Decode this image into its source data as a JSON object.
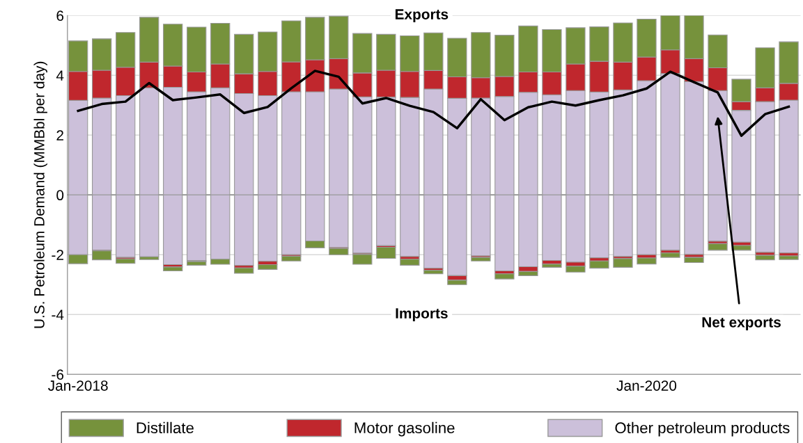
{
  "chart_data": {
    "type": "bar",
    "stacked": true,
    "ylabel": "U.S. Petroleum Demand (MMBbl per day)",
    "categories": [
      "Jan-2018",
      null,
      null,
      null,
      null,
      null,
      null,
      null,
      null,
      null,
      null,
      null,
      null,
      null,
      null,
      null,
      null,
      null,
      null,
      null,
      null,
      null,
      null,
      null,
      "Jan-2020",
      null,
      null,
      null,
      null,
      null,
      null
    ],
    "ylim": [
      -6,
      6
    ],
    "yticks": [
      -6,
      -4,
      -2,
      0,
      2,
      4,
      6
    ],
    "grid": "y",
    "legend": "bottom",
    "annotations": [
      "Exports",
      "Imports"
    ],
    "ref_lines": [
      {
        "axis": "y",
        "value": 0,
        "color": "#808080"
      }
    ],
    "series": [
      {
        "name": "Other petroleum products",
        "color": "#ccc0da",
        "values": [
          3.16,
          3.24,
          3.32,
          3.58,
          3.6,
          3.45,
          3.58,
          3.39,
          3.32,
          3.45,
          3.45,
          3.54,
          3.28,
          3.27,
          3.26,
          3.54,
          3.23,
          3.24,
          3.29,
          3.43,
          3.35,
          3.49,
          3.44,
          3.51,
          3.82,
          4.06,
          3.79,
          3.49,
          2.83,
          3.12,
          3.17
        ]
      },
      {
        "name": "Motor gasoline",
        "color": "#c0272d",
        "values": [
          0.97,
          0.93,
          0.95,
          0.86,
          0.71,
          0.66,
          0.8,
          0.66,
          0.81,
          1.0,
          1.07,
          1.02,
          0.8,
          0.9,
          0.87,
          0.62,
          0.72,
          0.68,
          0.67,
          0.68,
          0.76,
          0.89,
          1.03,
          0.93,
          0.79,
          0.79,
          0.77,
          0.76,
          0.29,
          0.46,
          0.56
        ]
      },
      {
        "name": "Distillate",
        "color": "#76923c",
        "values": [
          1.02,
          1.05,
          1.16,
          1.5,
          1.4,
          1.5,
          1.36,
          1.32,
          1.32,
          1.37,
          1.42,
          1.42,
          1.32,
          1.2,
          1.19,
          1.26,
          1.29,
          1.51,
          1.38,
          1.54,
          1.42,
          1.21,
          1.15,
          1.31,
          1.27,
          1.15,
          1.44,
          1.1,
          0.75,
          1.34,
          1.39
        ]
      },
      {
        "color": "#ccc0da",
        "values": [
          -2.0,
          -1.85,
          -2.09,
          -2.07,
          -2.33,
          -2.2,
          -2.15,
          -2.36,
          -2.22,
          -2.0,
          -1.54,
          -1.76,
          -1.95,
          -1.7,
          -2.06,
          -2.45,
          -2.7,
          -2.04,
          -2.54,
          -2.4,
          -2.19,
          -2.25,
          -2.1,
          -2.06,
          -2.0,
          -1.85,
          -1.99,
          -1.55,
          -1.58,
          -1.92,
          -1.94
        ]
      },
      {
        "color": "#c0272d",
        "values": [
          null,
          -0.02,
          -0.05,
          null,
          -0.08,
          -0.03,
          null,
          -0.08,
          -0.11,
          -0.05,
          null,
          -0.03,
          -0.04,
          -0.05,
          -0.09,
          -0.07,
          -0.15,
          -0.05,
          -0.1,
          -0.16,
          -0.12,
          -0.13,
          -0.11,
          -0.07,
          -0.11,
          -0.09,
          -0.1,
          -0.08,
          -0.11,
          -0.1,
          -0.1
        ]
      },
      {
        "color": "#76923c",
        "values": [
          -0.3,
          -0.3,
          -0.15,
          -0.09,
          -0.13,
          -0.12,
          -0.17,
          -0.18,
          -0.16,
          -0.16,
          -0.23,
          -0.21,
          -0.33,
          -0.37,
          -0.2,
          -0.12,
          -0.15,
          -0.12,
          -0.17,
          -0.14,
          -0.11,
          -0.2,
          -0.24,
          -0.29,
          -0.2,
          -0.15,
          -0.17,
          -0.22,
          -0.16,
          -0.15,
          -0.12
        ]
      },
      {
        "name": "Net exports",
        "type": "line",
        "color": "#000000",
        "values": [
          2.81,
          3.04,
          3.12,
          3.74,
          3.17,
          3.26,
          3.36,
          2.74,
          2.94,
          3.57,
          4.15,
          3.95,
          3.06,
          3.24,
          2.98,
          2.77,
          2.23,
          3.2,
          2.5,
          2.93,
          3.12,
          2.99,
          3.17,
          3.33,
          3.56,
          4.12,
          3.77,
          3.43,
          1.98,
          2.7,
          2.95
        ]
      }
    ]
  }
}
